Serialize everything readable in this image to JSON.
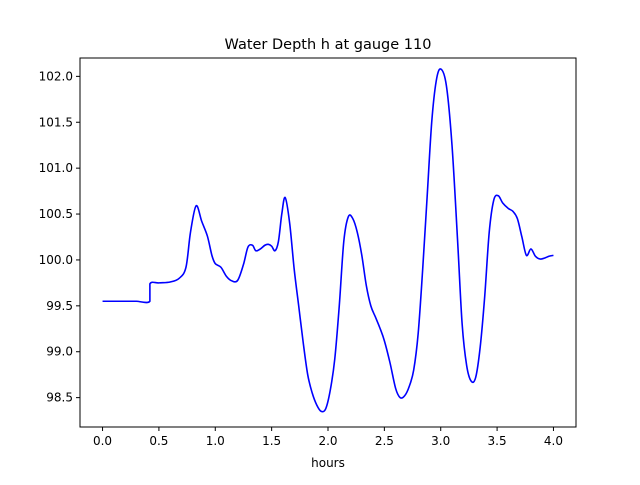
{
  "chart_data": {
    "type": "line",
    "title": "Water Depth h at gauge 110",
    "xlabel": "hours",
    "ylabel": "",
    "xlim": [
      -0.2,
      4.2
    ],
    "ylim": [
      98.18,
      102.2
    ],
    "grid": false,
    "xticks": [
      0.0,
      0.5,
      1.0,
      1.5,
      2.0,
      2.5,
      3.0,
      3.5,
      4.0
    ],
    "xtick_labels": [
      "0.0",
      "0.5",
      "1.0",
      "1.5",
      "2.0",
      "2.5",
      "3.0",
      "3.5",
      "4.0"
    ],
    "yticks": [
      98.5,
      99.0,
      99.5,
      100.0,
      100.5,
      101.0,
      101.5,
      102.0
    ],
    "ytick_labels": [
      "98.5",
      "99.0",
      "99.5",
      "100.0",
      "100.5",
      "101.0",
      "101.5",
      "102.0"
    ],
    "series": [
      {
        "color": "#0000ff",
        "x": [
          0.0,
          0.1,
          0.2,
          0.3,
          0.42,
          0.42,
          0.5,
          0.6,
          0.68,
          0.74,
          0.78,
          0.83,
          0.88,
          0.93,
          0.97,
          1.0,
          1.05,
          1.1,
          1.15,
          1.2,
          1.25,
          1.29,
          1.33,
          1.36,
          1.4,
          1.44,
          1.47,
          1.5,
          1.53,
          1.56,
          1.59,
          1.62,
          1.66,
          1.7,
          1.74,
          1.78,
          1.82,
          1.86,
          1.9,
          1.94,
          1.98,
          2.02,
          2.06,
          2.1,
          2.14,
          2.18,
          2.22,
          2.26,
          2.3,
          2.34,
          2.38,
          2.42,
          2.46,
          2.5,
          2.55,
          2.6,
          2.64,
          2.68,
          2.72,
          2.76,
          2.8,
          2.84,
          2.88,
          2.92,
          2.96,
          3.0,
          3.05,
          3.1,
          3.15,
          3.19,
          3.23,
          3.27,
          3.31,
          3.35,
          3.39,
          3.43,
          3.47,
          3.51,
          3.55,
          3.6,
          3.64,
          3.68,
          3.72,
          3.76,
          3.8,
          3.84,
          3.88,
          3.92,
          3.96,
          4.0
        ],
        "y": [
          99.55,
          99.55,
          99.55,
          99.55,
          99.55,
          99.74,
          99.75,
          99.76,
          99.8,
          99.92,
          100.3,
          100.59,
          100.42,
          100.26,
          100.05,
          99.96,
          99.92,
          99.82,
          99.77,
          99.78,
          99.95,
          100.14,
          100.16,
          100.1,
          100.12,
          100.16,
          100.17,
          100.15,
          100.1,
          100.2,
          100.5,
          100.68,
          100.4,
          99.9,
          99.5,
          99.1,
          98.75,
          98.55,
          98.42,
          98.35,
          98.38,
          98.58,
          98.92,
          99.5,
          100.2,
          100.47,
          100.45,
          100.3,
          100.05,
          99.72,
          99.5,
          99.38,
          99.26,
          99.12,
          98.88,
          98.6,
          98.5,
          98.52,
          98.62,
          98.8,
          99.2,
          99.9,
          100.7,
          101.5,
          101.95,
          102.08,
          101.9,
          101.25,
          100.2,
          99.3,
          98.85,
          98.68,
          98.72,
          99.05,
          99.6,
          100.3,
          100.65,
          100.7,
          100.62,
          100.56,
          100.53,
          100.45,
          100.25,
          100.05,
          100.12,
          100.04,
          100.01,
          100.02,
          100.04,
          100.05
        ]
      }
    ]
  }
}
